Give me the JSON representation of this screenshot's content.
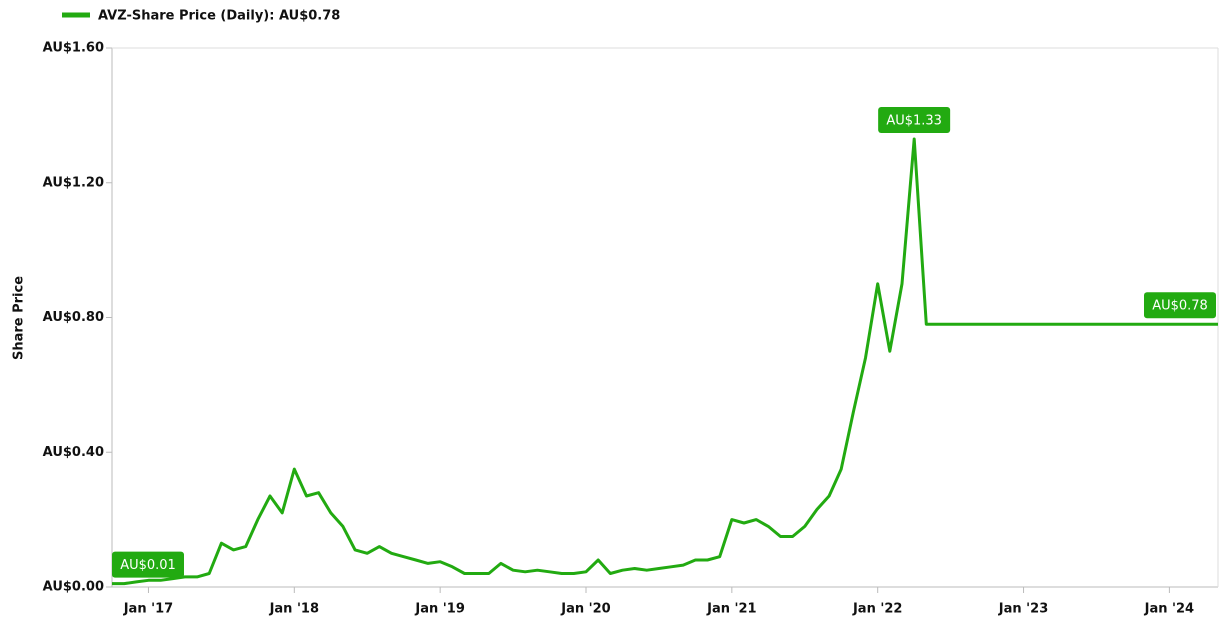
{
  "chart_data": {
    "type": "line",
    "y_label": "Share Price",
    "x": [
      "2016-10",
      "2016-11",
      "2016-12",
      "2017-01",
      "2017-02",
      "2017-03",
      "2017-04",
      "2017-05",
      "2017-06",
      "2017-07",
      "2017-08",
      "2017-09",
      "2017-10",
      "2017-11",
      "2017-12",
      "2018-01",
      "2018-02",
      "2018-03",
      "2018-04",
      "2018-05",
      "2018-06",
      "2018-07",
      "2018-08",
      "2018-09",
      "2018-10",
      "2018-11",
      "2018-12",
      "2019-01",
      "2019-02",
      "2019-03",
      "2019-04",
      "2019-05",
      "2019-06",
      "2019-07",
      "2019-08",
      "2019-09",
      "2019-10",
      "2019-11",
      "2019-12",
      "2020-01",
      "2020-02",
      "2020-03",
      "2020-04",
      "2020-05",
      "2020-06",
      "2020-07",
      "2020-08",
      "2020-09",
      "2020-10",
      "2020-11",
      "2020-12",
      "2021-01",
      "2021-02",
      "2021-03",
      "2021-04",
      "2021-05",
      "2021-06",
      "2021-07",
      "2021-08",
      "2021-09",
      "2021-10",
      "2021-11",
      "2021-12",
      "2022-01",
      "2022-02",
      "2022-03",
      "2022-04",
      "2022-05",
      "2022-06",
      "2022-09",
      "2022-12",
      "2023-03",
      "2023-06",
      "2023-09",
      "2023-12",
      "2024-03",
      "2024-05"
    ],
    "series": [
      {
        "name": "AVZ-Share Price (Daily): AU$0.78",
        "color": "#22aa11",
        "values": [
          0.01,
          0.01,
          0.015,
          0.02,
          0.02,
          0.025,
          0.03,
          0.03,
          0.04,
          0.13,
          0.11,
          0.12,
          0.2,
          0.27,
          0.22,
          0.35,
          0.27,
          0.28,
          0.22,
          0.18,
          0.11,
          0.1,
          0.12,
          0.1,
          0.09,
          0.08,
          0.07,
          0.075,
          0.06,
          0.04,
          0.04,
          0.04,
          0.07,
          0.05,
          0.045,
          0.05,
          0.045,
          0.04,
          0.04,
          0.045,
          0.08,
          0.04,
          0.05,
          0.055,
          0.05,
          0.055,
          0.06,
          0.065,
          0.08,
          0.08,
          0.09,
          0.2,
          0.19,
          0.2,
          0.18,
          0.15,
          0.15,
          0.18,
          0.23,
          0.27,
          0.35,
          0.52,
          0.68,
          0.9,
          0.7,
          0.9,
          1.33,
          0.78,
          0.78,
          0.78,
          0.78,
          0.78,
          0.78,
          0.78,
          0.78,
          0.78,
          0.78
        ]
      }
    ],
    "annotations": [
      "AU$0.01",
      "AU$1.33",
      "AU$0.78"
    ],
    "xlim": [
      "2016-10",
      "2024-05"
    ],
    "xticks": [
      {
        "value": "2017-01",
        "label": "Jan '17"
      },
      {
        "value": "2018-01",
        "label": "Jan '18"
      },
      {
        "value": "2019-01",
        "label": "Jan '19"
      },
      {
        "value": "2020-01",
        "label": "Jan '20"
      },
      {
        "value": "2021-01",
        "label": "Jan '21"
      },
      {
        "value": "2022-01",
        "label": "Jan '22"
      },
      {
        "value": "2023-01",
        "label": "Jan '23"
      },
      {
        "value": "2024-01",
        "label": "Jan '24"
      }
    ],
    "ylim": [
      0,
      1.6
    ],
    "yticks": [
      {
        "value": 0,
        "label": "AU$0.00"
      },
      {
        "value": 0.4,
        "label": "AU$0.40"
      },
      {
        "value": 0.8,
        "label": "AU$0.80"
      },
      {
        "value": 1.2,
        "label": "AU$1.20"
      },
      {
        "value": 1.6,
        "label": "AU$1.60"
      }
    ],
    "grid": false
  }
}
